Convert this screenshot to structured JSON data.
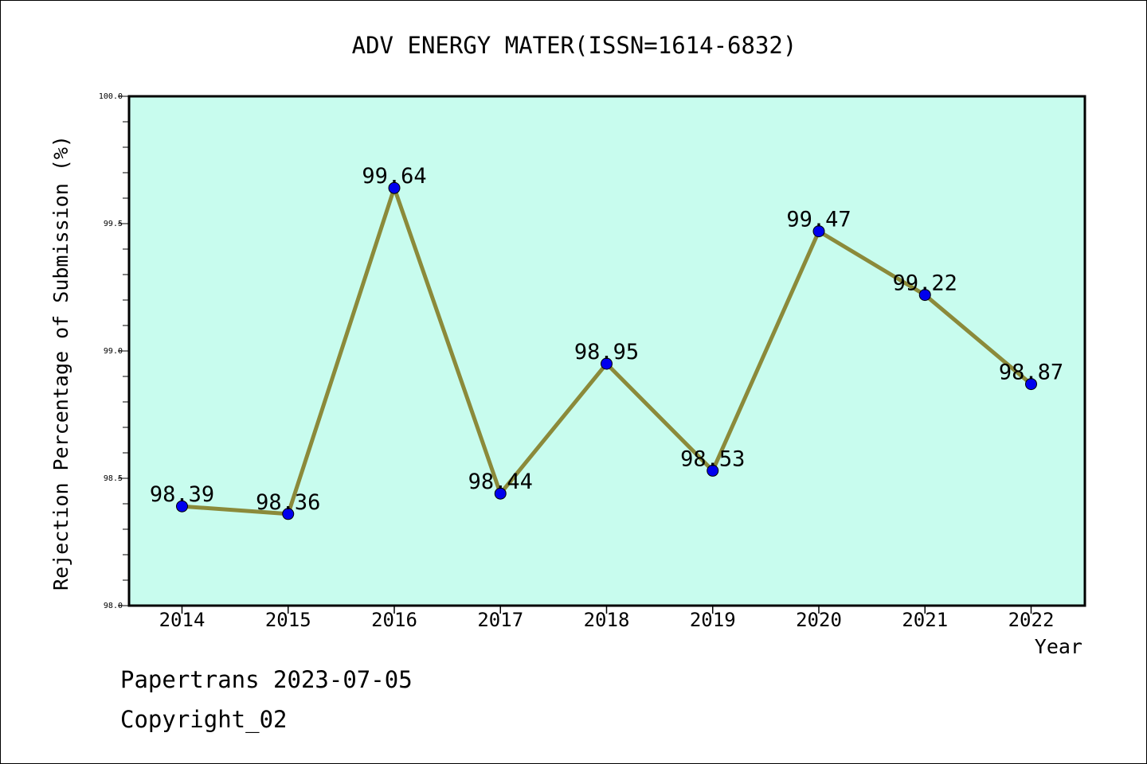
{
  "chart_data": {
    "type": "line",
    "title": "ADV ENERGY MATER(ISSN=1614-6832)",
    "xlabel": "Year",
    "ylabel": "Rejection Percentage of Submission (%)",
    "categories": [
      "2014",
      "2015",
      "2016",
      "2017",
      "2018",
      "2019",
      "2020",
      "2021",
      "2022"
    ],
    "series": [
      {
        "values": [
          98.39,
          98.36,
          99.64,
          98.44,
          98.95,
          98.53,
          99.47,
          99.22,
          98.87
        ]
      }
    ],
    "data_labels": [
      "98.39",
      "98.36",
      "99.64",
      "98.44",
      "98.95",
      "98.53",
      "99.47",
      "99.22",
      "98.87"
    ],
    "ylim": [
      98.0,
      100.0
    ],
    "yticks": [
      "98.0",
      "98.5",
      "99.0",
      "99.5",
      "100.0"
    ],
    "grid": false,
    "colors": {
      "plot_background": "#c8fcee",
      "line": "#8b8a3a",
      "marker": "#0000ee"
    }
  },
  "footer": {
    "line1": "Papertrans 2023-07-05",
    "line2": "Copyright_02"
  }
}
